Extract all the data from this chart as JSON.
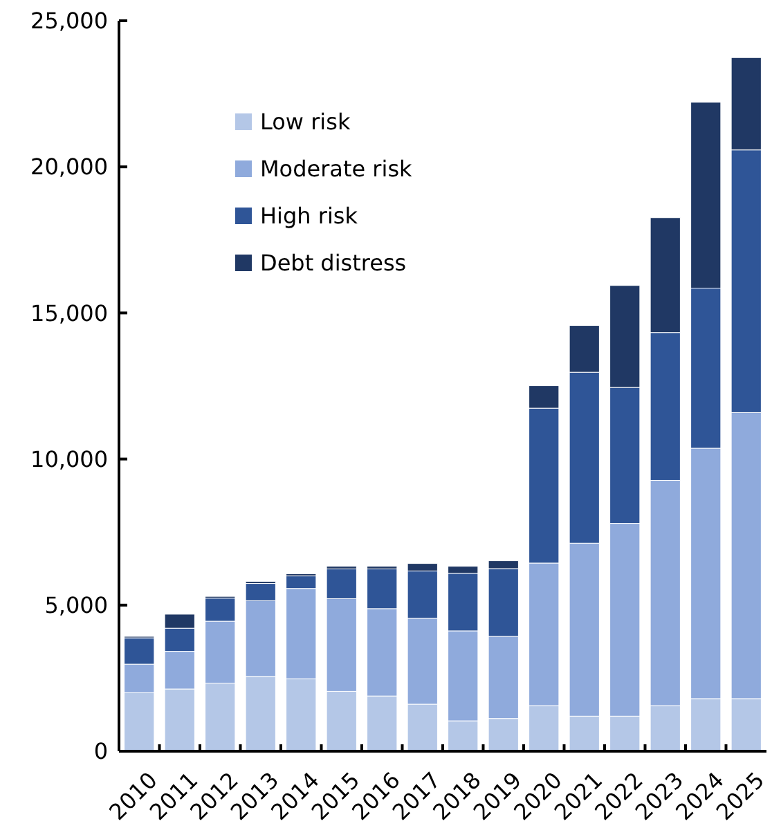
{
  "chart_data": {
    "type": "bar",
    "stacked": true,
    "categories": [
      "2010",
      "2011",
      "2012",
      "2013",
      "2014",
      "2015",
      "2016",
      "2017",
      "2018",
      "2019",
      "2020",
      "2021",
      "2022",
      "2023",
      "2024",
      "2025"
    ],
    "series": [
      {
        "name": "Low risk",
        "color": "#b4c7e7",
        "values": [
          2000,
          2130,
          2330,
          2560,
          2480,
          2050,
          1890,
          1610,
          1040,
          1120,
          1560,
          1200,
          1200,
          1560,
          1800,
          1800
        ]
      },
      {
        "name": "Moderate risk",
        "color": "#8faadc",
        "values": [
          980,
          1290,
          2120,
          2590,
          3090,
          3170,
          2990,
          2940,
          3080,
          2810,
          4880,
          5920,
          6600,
          7710,
          8570,
          9790
        ]
      },
      {
        "name": "High risk",
        "color": "#2f5597",
        "values": [
          900,
          790,
          790,
          590,
          430,
          1020,
          1360,
          1620,
          1970,
          2320,
          5300,
          5850,
          4650,
          5060,
          5480,
          8990
        ]
      },
      {
        "name": "Debt distress",
        "color": "#203864",
        "values": [
          50,
          480,
          60,
          70,
          75,
          90,
          90,
          255,
          240,
          270,
          770,
          1600,
          3490,
          3930,
          6360,
          3160
        ]
      }
    ],
    "ylim": [
      0,
      25000
    ],
    "yticks": [
      {
        "value": 0,
        "label": "0"
      },
      {
        "value": 5000,
        "label": "5,000"
      },
      {
        "value": 10000,
        "label": "10,000"
      },
      {
        "value": 15000,
        "label": "15,000"
      },
      {
        "value": 20000,
        "label": "20,000"
      },
      {
        "value": 25000,
        "label": "25,000"
      }
    ],
    "legend": "top left",
    "grid": false
  }
}
